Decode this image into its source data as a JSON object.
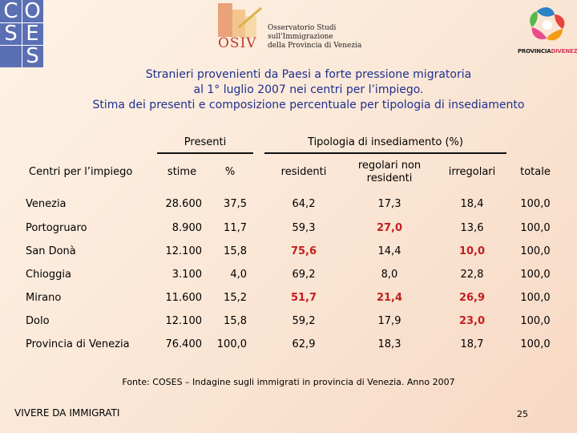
{
  "logos": {
    "coses_letters": [
      "C",
      "O",
      "S",
      "E",
      "S"
    ],
    "osiv_name": "OSIV",
    "osiv_lines": [
      "Osservatorio Studi",
      "sull'Immigrazione",
      "della Provincia di Venezia"
    ],
    "provincia_text_a": "PROVINCIA",
    "provincia_text_b": "DIVENEZIA"
  },
  "title": {
    "line1": "Stranieri provenienti da Paesi a forte pressione migratoria",
    "line2": "al 1° luglio 2007 nei centri per l’impiego.",
    "line3": "Stima dei presenti e composizione percentuale per tipologia di insediamento"
  },
  "table": {
    "group_presenti": "Presenti",
    "group_tipologia": "Tipologia di insediamento (%)",
    "col_centri": "Centri per l’impiego",
    "col_stime": "stime",
    "col_pct": "%",
    "col_residenti": "residenti",
    "col_regolari_1": "regolari non",
    "col_regolari_2": "residenti",
    "col_irregolari": "irregolari",
    "col_totale": "totale",
    "rows": [
      {
        "name": "Venezia",
        "stime": "28.600",
        "pct": "37,5",
        "res": "64,2",
        "reg": "17,3",
        "irr": "18,4",
        "tot": "100,0"
      },
      {
        "name": "Portogruaro",
        "stime": "8.900",
        "pct": "11,7",
        "res": "59,3",
        "reg": "27,0",
        "irr": "13,6",
        "tot": "100,0"
      },
      {
        "name": "San Donà",
        "stime": "12.100",
        "pct": "15,8",
        "res": "75,6",
        "reg": "14,4",
        "irr": "10,0",
        "tot": "100,0"
      },
      {
        "name": "Chioggia",
        "stime": "3.100",
        "pct": "4,0",
        "res": "69,2",
        "reg": "8,0",
        "irr": "22,8",
        "tot": "100,0"
      },
      {
        "name": "Mirano",
        "stime": "11.600",
        "pct": "15,2",
        "res": "51,7",
        "reg": "21,4",
        "irr": "26,9",
        "tot": "100,0"
      },
      {
        "name": "Dolo",
        "stime": "12.100",
        "pct": "15,8",
        "res": "59,2",
        "reg": "17,9",
        "irr": "23,0",
        "tot": "100,0"
      },
      {
        "name": "Provincia di Venezia",
        "stime": "76.400",
        "pct": "100,0",
        "res": "62,9",
        "reg": "18,3",
        "irr": "18,7",
        "tot": "100,0"
      }
    ]
  },
  "source": "Fonte: COSES – Indagine sugli immigrati in provincia di Venezia. Anno 2007",
  "footer": {
    "left": "VIVERE DA IMMIGRATI",
    "page": "25"
  },
  "colors": {
    "title": "#1f2f8f",
    "highlight": "#c21f1f",
    "coses_bg": "#5b6fb3"
  }
}
